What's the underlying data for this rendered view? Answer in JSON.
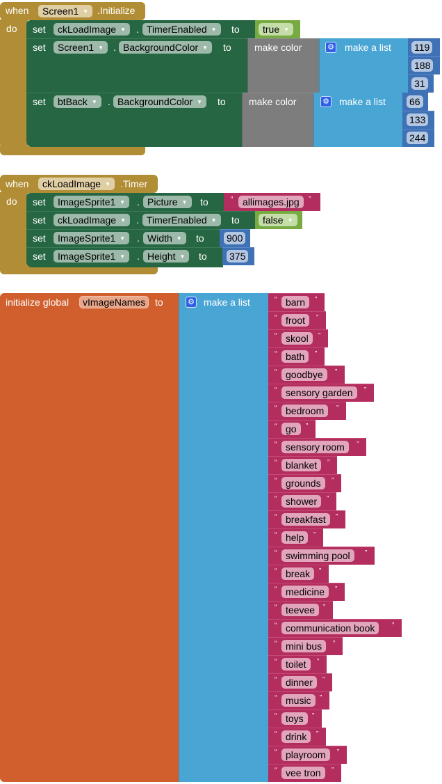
{
  "block1": {
    "when": "when",
    "component": "Screen1",
    "event": ".Initialize",
    "do": "do",
    "statements": [
      {
        "set": "set",
        "component": "ckLoadImage",
        "dot": ".",
        "property": "TimerEnabled",
        "to": "to",
        "value": "true"
      },
      {
        "set": "set",
        "component": "Screen1",
        "dot": ".",
        "property": "BackgroundColor",
        "to": "to",
        "make_color": "make color",
        "make_list": "make a list",
        "values": [
          "119",
          "188",
          "31"
        ]
      },
      {
        "set": "set",
        "component": "btBack",
        "dot": ".",
        "property": "BackgroundColor",
        "to": "to",
        "make_color": "make color",
        "make_list": "make a list",
        "values": [
          "66",
          "133",
          "244"
        ]
      }
    ]
  },
  "block2": {
    "when": "when",
    "component": "ckLoadImage",
    "event": ".Timer",
    "do": "do",
    "statements": [
      {
        "set": "set",
        "component": "ImageSprite1",
        "dot": ".",
        "property": "Picture",
        "to": "to",
        "value": "allimages.jpg"
      },
      {
        "set": "set",
        "component": "ckLoadImage",
        "dot": ".",
        "property": "TimerEnabled",
        "to": "to",
        "value": "false"
      },
      {
        "set": "set",
        "component": "ImageSprite1",
        "dot": ".",
        "property": "Width",
        "to": "to",
        "value": "900"
      },
      {
        "set": "set",
        "component": "ImageSprite1",
        "dot": ".",
        "property": "Height",
        "to": "to",
        "value": "375"
      }
    ]
  },
  "block3": {
    "label": "initialize global",
    "var_name": "vImageNames",
    "to": "to",
    "make_list": "make a list",
    "items": [
      "barn",
      "froot",
      "skool",
      "bath",
      "goodbye",
      "sensory garden",
      "bedroom",
      "go",
      "sensory room",
      "blanket",
      "grounds",
      "shower",
      "breakfast",
      "help",
      "swimming pool",
      "break",
      "medicine",
      "teevee",
      "communication book",
      "mini bus",
      "toilet",
      "dinner",
      "music",
      "toys",
      "drink",
      "playroom",
      "vee tron"
    ]
  },
  "icons": {
    "dropdown": "▼",
    "gear": "⚙",
    "open_quote": "“",
    "close_quote": "”"
  },
  "colors": {
    "event": "#b18e35",
    "setter": "#266643",
    "color": "#7d7d7d",
    "list": "#49a6d4",
    "number": "#3f71b5",
    "logic": "#77ab41",
    "text": "#b32d5e",
    "global": "#d05f2d"
  }
}
